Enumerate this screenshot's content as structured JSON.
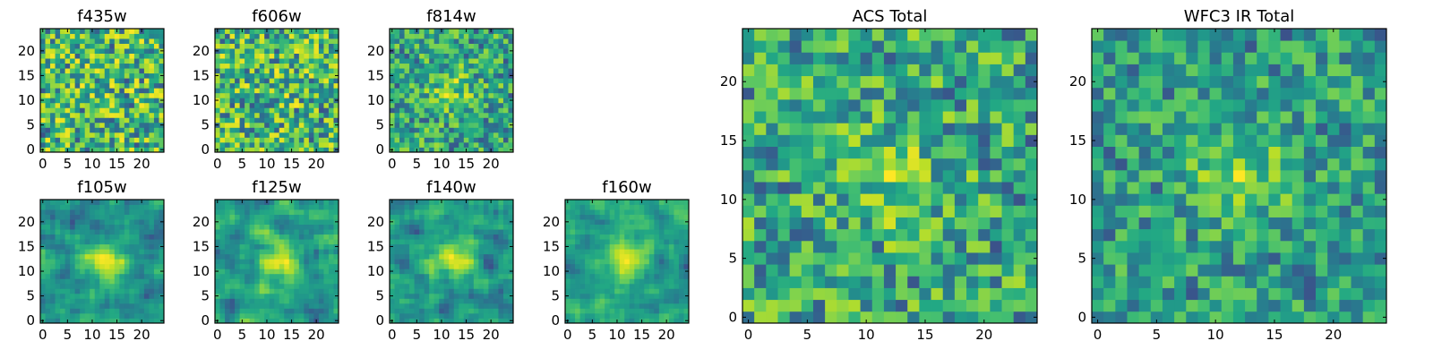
{
  "chart_data": [
    {
      "type": "heatmap",
      "title": "f435w",
      "mode": "noise",
      "xticks": [
        "0",
        "5",
        "10",
        "15",
        "20"
      ],
      "yticks": [
        "0",
        "5",
        "10",
        "15",
        "20"
      ],
      "xlim": [
        -0.5,
        24.5
      ],
      "ylim": [
        -0.5,
        24.5
      ],
      "shape": [
        25,
        25
      ],
      "colormap": "viridis",
      "center": [
        12,
        12
      ]
    },
    {
      "type": "heatmap",
      "title": "f606w",
      "mode": "noise",
      "xticks": [
        "0",
        "5",
        "10",
        "15",
        "20"
      ],
      "yticks": [
        "0",
        "5",
        "10",
        "15",
        "20"
      ],
      "xlim": [
        -0.5,
        24.5
      ],
      "ylim": [
        -0.5,
        24.5
      ],
      "shape": [
        25,
        25
      ],
      "colormap": "viridis",
      "center": [
        12,
        12
      ]
    },
    {
      "type": "heatmap",
      "title": "f814w",
      "mode": "weak",
      "xticks": [
        "0",
        "5",
        "10",
        "15",
        "20"
      ],
      "yticks": [
        "0",
        "5",
        "10",
        "15",
        "20"
      ],
      "xlim": [
        -0.5,
        24.5
      ],
      "ylim": [
        -0.5,
        24.5
      ],
      "shape": [
        25,
        25
      ],
      "colormap": "viridis",
      "center": [
        12,
        12
      ]
    },
    {
      "type": "heatmap",
      "title": "f105w",
      "mode": "smooth",
      "xticks": [
        "0",
        "5",
        "10",
        "15",
        "20"
      ],
      "yticks": [
        "0",
        "5",
        "10",
        "15",
        "20"
      ],
      "xlim": [
        -0.5,
        24.5
      ],
      "ylim": [
        -0.5,
        24.5
      ],
      "shape": [
        25,
        25
      ],
      "colormap": "viridis",
      "center": [
        12,
        12
      ]
    },
    {
      "type": "heatmap",
      "title": "f125w",
      "mode": "smooth",
      "xticks": [
        "0",
        "5",
        "10",
        "15",
        "20"
      ],
      "yticks": [
        "0",
        "5",
        "10",
        "15",
        "20"
      ],
      "xlim": [
        -0.5,
        24.5
      ],
      "ylim": [
        -0.5,
        24.5
      ],
      "shape": [
        25,
        25
      ],
      "colormap": "viridis",
      "center": [
        12,
        12
      ]
    },
    {
      "type": "heatmap",
      "title": "f140w",
      "mode": "smooth",
      "xticks": [
        "0",
        "5",
        "10",
        "15",
        "20"
      ],
      "yticks": [
        "0",
        "5",
        "10",
        "15",
        "20"
      ],
      "xlim": [
        -0.5,
        24.5
      ],
      "ylim": [
        -0.5,
        24.5
      ],
      "shape": [
        25,
        25
      ],
      "colormap": "viridis",
      "center": [
        12,
        12
      ]
    },
    {
      "type": "heatmap",
      "title": "f160w",
      "mode": "smooth",
      "xticks": [
        "0",
        "5",
        "10",
        "15",
        "20"
      ],
      "yticks": [
        "0",
        "5",
        "10",
        "15",
        "20"
      ],
      "xlim": [
        -0.5,
        24.5
      ],
      "ylim": [
        -0.5,
        24.5
      ],
      "shape": [
        25,
        25
      ],
      "colormap": "viridis",
      "center": [
        12,
        12
      ]
    },
    {
      "type": "heatmap",
      "title": "ACS Total",
      "mode": "weak",
      "xticks": [
        "0",
        "5",
        "10",
        "15",
        "20"
      ],
      "yticks": [
        "0",
        "5",
        "10",
        "15",
        "20"
      ],
      "xlim": [
        -0.5,
        24.5
      ],
      "ylim": [
        -0.5,
        24.5
      ],
      "shape": [
        25,
        25
      ],
      "colormap": "viridis",
      "center": [
        12,
        12
      ]
    },
    {
      "type": "heatmap",
      "title": "WFC3 IR Total",
      "mode": "strong",
      "xticks": [
        "0",
        "5",
        "10",
        "15",
        "20"
      ],
      "yticks": [
        "0",
        "5",
        "10",
        "15",
        "20"
      ],
      "xlim": [
        -0.5,
        24.5
      ],
      "ylim": [
        -0.5,
        24.5
      ],
      "shape": [
        25,
        25
      ],
      "colormap": "viridis",
      "center": [
        12,
        12
      ]
    }
  ]
}
